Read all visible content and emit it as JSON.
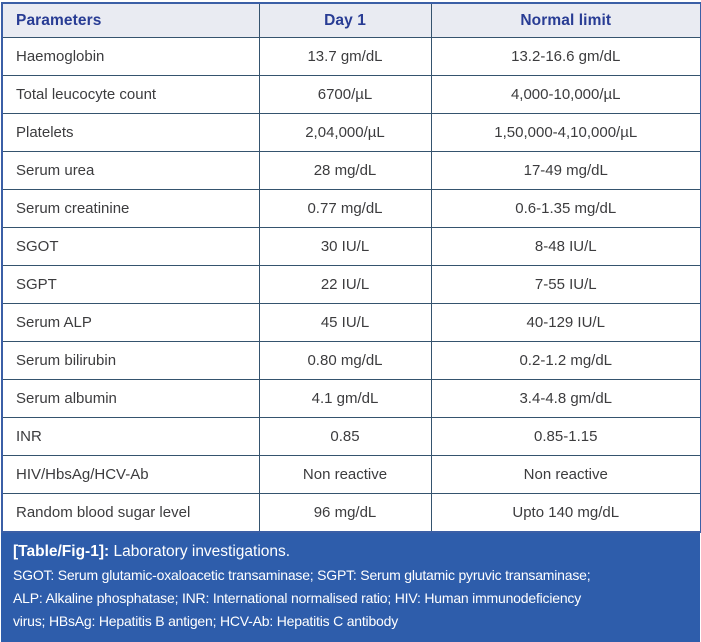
{
  "table": {
    "columns": [
      "Parameters",
      "Day 1",
      "Normal limit"
    ],
    "rows": [
      {
        "parameter": "Haemoglobin",
        "day1": "13.7 gm/dL",
        "normal": "13.2-16.6 gm/dL"
      },
      {
        "parameter": "Total leucocyte count",
        "day1": "6700/µL",
        "normal": "4,000-10,000/µL"
      },
      {
        "parameter": "Platelets",
        "day1": "2,04,000/µL",
        "normal": "1,50,000-4,10,000/µL"
      },
      {
        "parameter": "Serum urea",
        "day1": "28 mg/dL",
        "normal": "17-49 mg/dL"
      },
      {
        "parameter": "Serum creatinine",
        "day1": "0.77 mg/dL",
        "normal": "0.6-1.35 mg/dL"
      },
      {
        "parameter": "SGOT",
        "day1": "30 IU/L",
        "normal": "8-48 IU/L"
      },
      {
        "parameter": "SGPT",
        "day1": "22 IU/L",
        "normal": "7-55 IU/L"
      },
      {
        "parameter": "Serum ALP",
        "day1": "45 IU/L",
        "normal": "40-129 IU/L"
      },
      {
        "parameter": "Serum bilirubin",
        "day1": "0.80 mg/dL",
        "normal": "0.2-1.2 mg/dL"
      },
      {
        "parameter": "Serum albumin",
        "day1": "4.1 gm/dL",
        "normal": "3.4-4.8 gm/dL"
      },
      {
        "parameter": "INR",
        "day1": "0.85",
        "normal": "0.85-1.15"
      },
      {
        "parameter": "HIV/HbsAg/HCV-Ab",
        "day1": "Non reactive",
        "normal": "Non reactive"
      },
      {
        "parameter": "Random blood sugar level",
        "day1": "96 mg/dL",
        "normal": "Upto 140 mg/dL"
      }
    ]
  },
  "caption": {
    "label": "[Table/Fig-1]:",
    "title": " Laboratory investigations.",
    "abbreviation_lines": [
      "SGOT: Serum glutamic-oxaloacetic transaminase; SGPT: Serum glutamic pyruvic transaminase;",
      "ALP: Alkaline phosphatase; INR: International normalised ratio; HIV: Human immunodeficiency",
      "virus; HBsAg: Hepatitis B antigen; HCV-Ab: Hepatitis C antibody"
    ]
  },
  "colors": {
    "outer_border": "#3b5fa6",
    "inner_border": "#35536e",
    "header_bg": "#e9ebf2",
    "header_text": "#283c94",
    "body_text": "#3c3c3e",
    "caption_bg": "#2e5dab",
    "caption_text": "#ffffff"
  }
}
